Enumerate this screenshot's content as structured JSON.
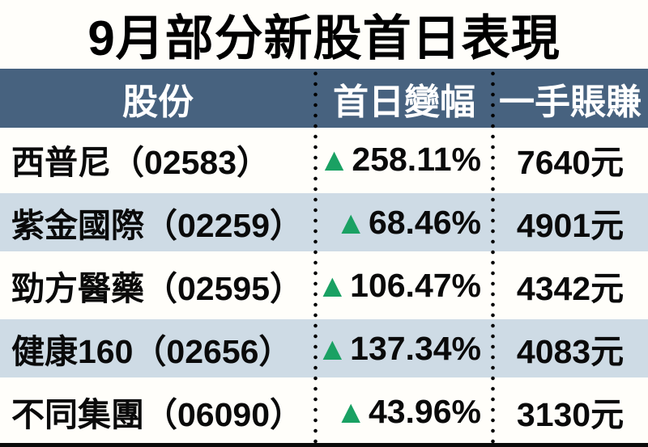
{
  "title": "9月部分新股首日表現",
  "icons": {
    "up_triangle": "▲"
  },
  "colors": {
    "header-bg": "#47627F",
    "row-alt-bg": "#CEDBE5",
    "up-green": "#1AA163",
    "paper-bg": "#FFFEFA",
    "rule-black": "#0B0B0B"
  },
  "table": {
    "columns": [
      "股份",
      "首日變幅",
      "一手賬賺"
    ],
    "rows": [
      {
        "stock": "西普尼（02583）",
        "direction": "up",
        "change": "258.11%",
        "profit": "7640元"
      },
      {
        "stock": "紫金國際（02259）",
        "direction": "up",
        "change": "68.46%",
        "profit": "4901元"
      },
      {
        "stock": "勁方醫藥（02595）",
        "direction": "up",
        "change": "106.47%",
        "profit": "4342元"
      },
      {
        "stock": "健康160（02656）",
        "direction": "up",
        "change": "137.34%",
        "profit": "4083元"
      },
      {
        "stock": "不同集團（06090）",
        "direction": "up",
        "change": "43.96%",
        "profit": "3130元"
      }
    ]
  },
  "chart_data": {
    "type": "table",
    "title": "9月部分新股首日表現",
    "columns": [
      "股份",
      "首日變幅",
      "一手賬賺"
    ],
    "rows": [
      [
        "西普尼（02583）",
        "+258.11%",
        "7640元"
      ],
      [
        "紫金國際（02259）",
        "+68.46%",
        "4901元"
      ],
      [
        "勁方醫藥（02595）",
        "+106.47%",
        "4342元"
      ],
      [
        "健康160（02656）",
        "+137.34%",
        "4083元"
      ],
      [
        "不同集團（06090）",
        "+43.96%",
        "3130元"
      ]
    ],
    "first_day_change_pct": [
      258.11,
      68.46,
      106.47,
      137.34,
      43.96
    ],
    "profit_per_lot_hkd": [
      7640,
      4901,
      4342,
      4083,
      3130
    ],
    "all_directions": "up"
  }
}
